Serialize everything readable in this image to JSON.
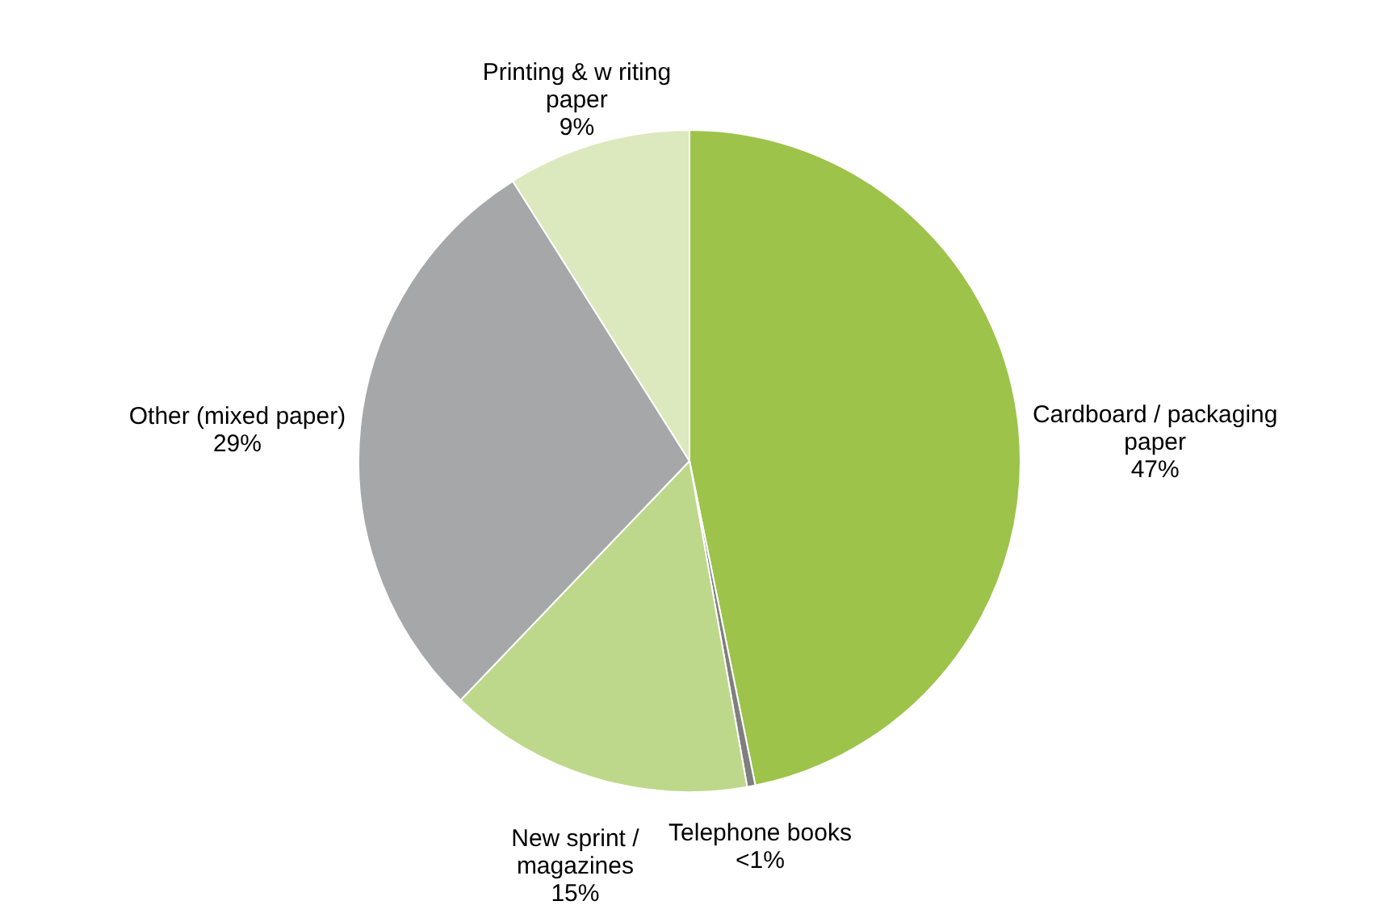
{
  "chart_data": {
    "type": "pie",
    "categories": [
      "Cardboard / packaging paper",
      "Telephone books",
      "New sprint / magazines",
      "Other (mixed paper)",
      "Printing & w riting paper"
    ],
    "values": [
      47,
      0.4,
      15,
      29,
      9
    ],
    "value_labels": [
      "47%",
      "<1%",
      "15%",
      "29%",
      "9%"
    ],
    "colors": [
      "#9dc34a",
      "#7f7f7f",
      "#bdd88a",
      "#a6a7a9",
      "#dce8bd"
    ]
  }
}
